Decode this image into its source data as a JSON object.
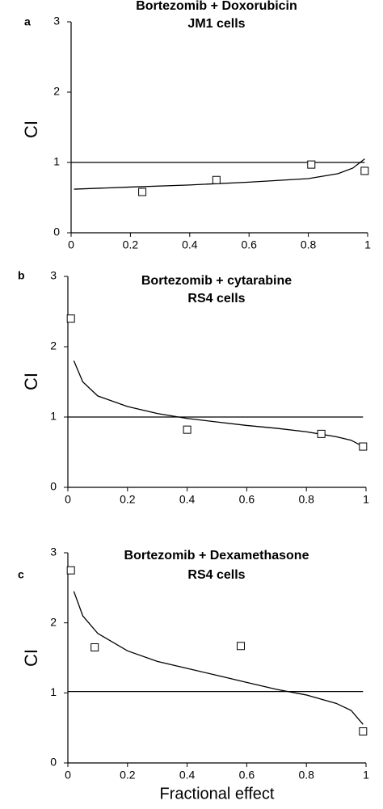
{
  "chart_data": [
    {
      "type": "line",
      "panel_label": "a",
      "title": "Bortezomib + Doxorubicin",
      "subtitle": "JM1 cells",
      "y_label": "CI",
      "xlim": [
        0,
        1
      ],
      "ylim": [
        0,
        3
      ],
      "xticks": [
        0,
        0.2,
        0.4,
        0.6,
        0.8,
        1
      ],
      "yticks": [
        0,
        1,
        2,
        3
      ],
      "series": [
        {
          "style": "line",
          "color": "#000000",
          "x": [
            0.01,
            0.2,
            0.4,
            0.6,
            0.8,
            0.9,
            0.95,
            0.99
          ],
          "values": [
            0.62,
            0.65,
            0.68,
            0.72,
            0.77,
            0.84,
            0.92,
            1.05
          ]
        },
        {
          "style": "line",
          "color": "#000000",
          "x": [
            0,
            0.99
          ],
          "values": [
            1,
            1
          ]
        },
        {
          "style": "markers",
          "color": "#000000",
          "x": [
            0.24,
            0.49,
            0.81,
            0.99
          ],
          "values": [
            0.58,
            0.75,
            0.97,
            0.88
          ]
        }
      ]
    },
    {
      "type": "line",
      "panel_label": "b",
      "title": "Bortezomib + cytarabine",
      "subtitle": "RS4 cells",
      "y_label": "CI",
      "xlim": [
        0,
        1
      ],
      "ylim": [
        0,
        3
      ],
      "xticks": [
        0,
        0.2,
        0.4,
        0.6,
        0.8,
        1
      ],
      "yticks": [
        0,
        1,
        2,
        3
      ],
      "series": [
        {
          "style": "line",
          "color": "#000000",
          "x": [
            0.02,
            0.05,
            0.1,
            0.2,
            0.3,
            0.4,
            0.5,
            0.6,
            0.7,
            0.8,
            0.9,
            0.95,
            0.99
          ],
          "values": [
            1.8,
            1.5,
            1.3,
            1.15,
            1.05,
            0.98,
            0.93,
            0.88,
            0.84,
            0.79,
            0.72,
            0.67,
            0.58
          ]
        },
        {
          "style": "line",
          "color": "#000000",
          "x": [
            0,
            0.99
          ],
          "values": [
            1,
            1
          ]
        },
        {
          "style": "markers",
          "color": "#000000",
          "x": [
            0.01,
            0.4,
            0.85,
            0.99
          ],
          "values": [
            2.4,
            0.82,
            0.76,
            0.58
          ]
        }
      ]
    },
    {
      "type": "line",
      "panel_label": "c",
      "title": "Bortezomib + Dexamethasone",
      "subtitle": "RS4 cells",
      "y_label": "CI",
      "x_label": "Fractional effect",
      "xlim": [
        0,
        1
      ],
      "ylim": [
        0,
        3
      ],
      "xticks": [
        0,
        0.2,
        0.4,
        0.6,
        0.8,
        1
      ],
      "yticks": [
        0,
        1,
        2,
        3
      ],
      "series": [
        {
          "style": "line",
          "color": "#000000",
          "x": [
            0.02,
            0.05,
            0.1,
            0.2,
            0.3,
            0.4,
            0.5,
            0.6,
            0.7,
            0.8,
            0.9,
            0.95,
            0.99
          ],
          "values": [
            2.45,
            2.1,
            1.85,
            1.6,
            1.45,
            1.35,
            1.25,
            1.15,
            1.05,
            0.97,
            0.85,
            0.75,
            0.55
          ]
        },
        {
          "style": "line",
          "color": "#000000",
          "x": [
            0,
            0.99
          ],
          "values": [
            1.02,
            1.02
          ]
        },
        {
          "style": "markers",
          "color": "#000000",
          "x": [
            0.01,
            0.09,
            0.58,
            0.99
          ],
          "values": [
            2.75,
            1.65,
            1.67,
            0.45
          ]
        }
      ]
    }
  ]
}
